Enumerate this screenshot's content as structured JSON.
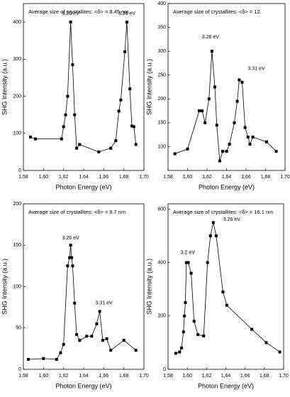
{
  "chart_data": [
    {
      "type": "line",
      "annotation": "Average size of crystallites: <δ> = 8.45 nm",
      "peak_labels": [
        "3.26 eV",
        "3.36 eV"
      ],
      "xlabel": "Photon Energy (eV)",
      "ylabel": "SHG Intensity (a.u.)",
      "x": [
        1.587,
        1.592,
        1.618,
        1.62,
        1.622,
        1.624,
        1.627,
        1.629,
        1.631,
        1.633,
        1.636,
        1.655,
        1.667,
        1.672,
        1.675,
        1.677,
        1.681,
        1.683,
        1.686,
        1.688,
        1.69,
        1.692
      ],
      "series": [
        {
          "color": "#000000",
          "values": [
            90,
            85,
            85,
            118,
            150,
            200,
            400,
            285,
            150,
            60,
            70,
            50,
            60,
            80,
            160,
            190,
            320,
            400,
            220,
            120,
            118,
            70
          ]
        }
      ],
      "xlim": [
        1.58,
        1.7
      ],
      "ylim": [
        0,
        450
      ],
      "xticks": [
        {
          "value": 1.58,
          "label": "1,58"
        },
        {
          "value": 1.6,
          "label": "1,60"
        },
        {
          "value": 1.62,
          "label": "1,62"
        },
        {
          "value": 1.64,
          "label": "1,64"
        },
        {
          "value": 1.66,
          "label": "1,66"
        },
        {
          "value": 1.68,
          "label": "1,68"
        },
        {
          "value": 1.7,
          "label": "1,70"
        }
      ],
      "yticks": [
        0,
        100,
        200,
        300,
        400
      ]
    },
    {
      "type": "line",
      "annotation": "Average size of crystallites: <δ> = 12.",
      "peak_labels": [
        "3.26 eV",
        "3.31 eV"
      ],
      "xlabel": "Photon Energy (eV)",
      "ylabel": "SHG Intensity (a.u.)",
      "x": [
        1.587,
        1.6,
        1.612,
        1.615,
        1.618,
        1.622,
        1.625,
        1.628,
        1.63,
        1.633,
        1.636,
        1.64,
        1.643,
        1.648,
        1.651,
        1.653,
        1.656,
        1.659,
        1.662,
        1.664,
        1.667,
        1.681,
        1.691
      ],
      "series": [
        {
          "color": "#000000",
          "values": [
            85,
            95,
            175,
            175,
            150,
            200,
            300,
            225,
            145,
            70,
            90,
            90,
            105,
            150,
            195,
            240,
            235,
            140,
            120,
            105,
            120,
            110,
            90
          ]
        }
      ],
      "xlim": [
        1.58,
        1.7
      ],
      "ylim": [
        50,
        400
      ],
      "xticks": [
        {
          "value": 1.58,
          "label": "1,58"
        },
        {
          "value": 1.6,
          "label": "1,60"
        },
        {
          "value": 1.62,
          "label": "1,62"
        },
        {
          "value": 1.64,
          "label": "1,64"
        },
        {
          "value": 1.66,
          "label": "1,66"
        },
        {
          "value": 1.68,
          "label": "1,68"
        },
        {
          "value": 1.7,
          "label": "1,70"
        }
      ],
      "yticks": [
        100,
        150,
        200,
        250,
        300,
        350,
        400
      ]
    },
    {
      "type": "line",
      "annotation": "Average size of crystallites: <δ> = 9.7 nm",
      "peak_labels": [
        "3.26 eV",
        "3.31 eV"
      ],
      "xlabel": "Photon Energy (eV)",
      "ylabel": "SHG Intensity (a.u.)",
      "x": [
        1.585,
        1.6,
        1.613,
        1.617,
        1.62,
        1.624,
        1.626,
        1.627,
        1.628,
        1.629,
        1.631,
        1.633,
        1.636,
        1.643,
        1.648,
        1.653,
        1.656,
        1.659,
        1.663,
        1.667,
        1.68,
        1.692
      ],
      "series": [
        {
          "color": "#000000",
          "values": [
            12,
            13,
            12,
            20,
            30,
            125,
            135,
            150,
            135,
            125,
            80,
            42,
            35,
            40,
            40,
            55,
            70,
            35,
            37,
            23,
            35,
            23
          ]
        }
      ],
      "xlim": [
        1.58,
        1.7
      ],
      "ylim": [
        0,
        200
      ],
      "xticks": [
        {
          "value": 1.58,
          "label": "1,58"
        },
        {
          "value": 1.6,
          "label": "1,60"
        },
        {
          "value": 1.62,
          "label": "1,62"
        },
        {
          "value": 1.64,
          "label": "1,64"
        },
        {
          "value": 1.66,
          "label": "1,66"
        },
        {
          "value": 1.68,
          "label": "1,68"
        },
        {
          "value": 1.7,
          "label": "1,70"
        }
      ],
      "yticks": [
        0,
        50,
        100,
        150,
        200
      ]
    },
    {
      "type": "line",
      "annotation": "Average size of crystallites: <δ> = 16.1 nm",
      "peak_labels": [
        "3.2 eV",
        "3.26 eV"
      ],
      "xlabel": "Photon Energy (eV)",
      "ylabel": "SHG Intensity (a.u.)",
      "x": [
        1.588,
        1.592,
        1.594,
        1.596,
        1.597,
        1.598,
        1.599,
        1.601,
        1.604,
        1.607,
        1.611,
        1.617,
        1.621,
        1.624,
        1.627,
        1.63,
        1.637,
        1.641,
        1.667,
        1.682,
        1.696
      ],
      "series": [
        {
          "color": "#000000",
          "values": [
            60,
            65,
            80,
            140,
            200,
            250,
            400,
            400,
            360,
            180,
            130,
            125,
            400,
            500,
            550,
            500,
            290,
            240,
            150,
            100,
            65
          ]
        }
      ],
      "xlim": [
        1.58,
        1.7
      ],
      "ylim": [
        0,
        620
      ],
      "xticks": [
        {
          "value": 1.58,
          "label": "1,58"
        },
        {
          "value": 1.6,
          "label": "1,60"
        },
        {
          "value": 1.62,
          "label": "1,62"
        },
        {
          "value": 1.64,
          "label": "1,64"
        },
        {
          "value": 1.66,
          "label": "1,66"
        },
        {
          "value": 1.68,
          "label": "1,68"
        },
        {
          "value": 1.7,
          "label": "1,70"
        }
      ],
      "yticks": [
        0,
        200,
        400,
        600
      ]
    }
  ]
}
